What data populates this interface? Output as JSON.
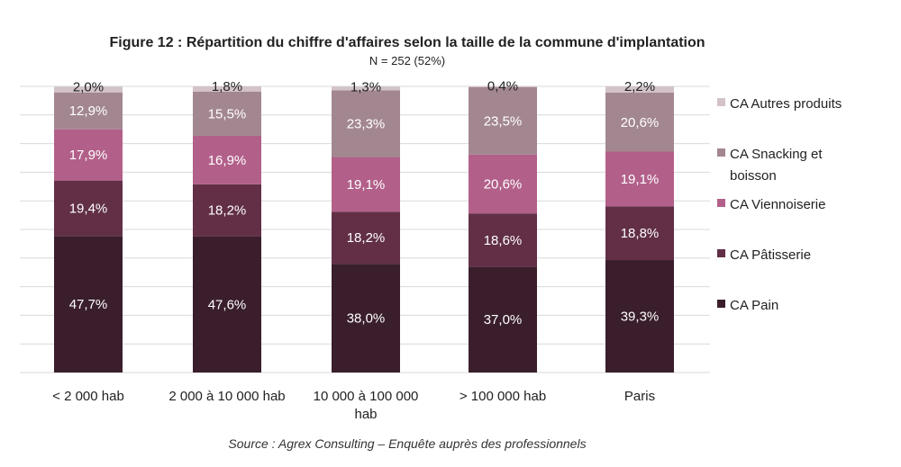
{
  "chart_data": {
    "type": "bar",
    "stacked": true,
    "title": "Figure 12 : Répartition du chiffre d'affaires selon la taille de la commune d'implantation",
    "subtitle": "N = 252 (52%)",
    "source": "Source : Agrex Consulting – Enquête auprès des professionnels",
    "categories": [
      [
        "< 2 000 hab"
      ],
      [
        "2 000 à 10 000 hab"
      ],
      [
        "10 000 à 100 000",
        "hab"
      ],
      [
        "> 100 000 hab"
      ],
      [
        "Paris"
      ]
    ],
    "ylim": [
      0,
      100
    ],
    "legend_position": "right",
    "series": [
      {
        "name": "CA Pain",
        "color": "#3a1e2c",
        "label_color": "#ffffff",
        "values": [
          47.7,
          47.6,
          38.0,
          37.0,
          39.3
        ],
        "labels": [
          "47,7%",
          "47,6%",
          "38,0%",
          "37,0%",
          "39,3%"
        ]
      },
      {
        "name": "CA Pâtisserie",
        "color": "#622f47",
        "label_color": "#ffffff",
        "values": [
          19.4,
          18.2,
          18.2,
          18.6,
          18.8
        ],
        "labels": [
          "19,4%",
          "18,2%",
          "18,2%",
          "18,6%",
          "18,8%"
        ]
      },
      {
        "name": "CA Viennoiserie",
        "color": "#b2608a",
        "label_color": "#ffffff",
        "values": [
          17.9,
          16.9,
          19.1,
          20.6,
          19.1
        ],
        "labels": [
          "17,9%",
          "16,9%",
          "19,1%",
          "20,6%",
          "19,1%"
        ]
      },
      {
        "name": "CA Snacking et boisson",
        "color": "#a38790",
        "label_color": "#ffffff",
        "values": [
          12.9,
          15.5,
          23.3,
          23.5,
          20.6
        ],
        "labels": [
          "12,9%",
          "15,5%",
          "23,3%",
          "23,5%",
          "20,6%"
        ]
      },
      {
        "name": "CA Autres produits",
        "color": "#d3c3c8",
        "label_color": "#222222",
        "values": [
          2.0,
          1.8,
          1.3,
          0.4,
          2.2
        ],
        "labels": [
          "2,0%",
          "1,8%",
          "1,3%",
          "0,4%",
          "2,2%"
        ]
      }
    ],
    "legend_lines": [
      [
        "CA Autres produits"
      ],
      [
        "CA Snacking et",
        "boisson"
      ],
      [
        "CA Viennoiserie"
      ],
      [
        "CA Pâtisserie"
      ],
      [
        "CA Pain"
      ]
    ]
  }
}
